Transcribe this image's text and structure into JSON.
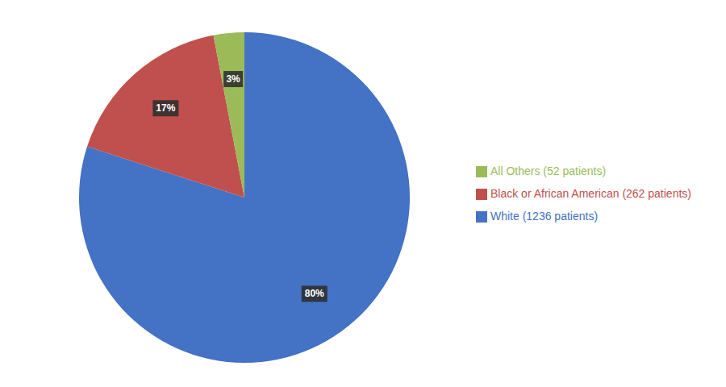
{
  "chart_data": {
    "type": "pie",
    "categories": [
      "White (1236 patients)",
      "Black or African American (262 patients)",
      "All Others (52 patients)"
    ],
    "values": [
      80,
      17,
      3
    ],
    "value_labels": [
      "80%",
      "17%",
      "3%"
    ],
    "colors": [
      "#4472C4",
      "#C0504D",
      "#9BBB59"
    ],
    "data_labels": true,
    "legend": "right"
  }
}
